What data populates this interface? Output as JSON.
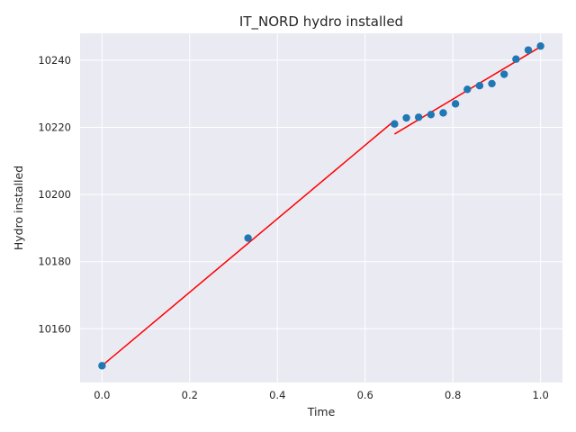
{
  "chart_data": {
    "type": "scatter",
    "title": "IT_NORD hydro installed",
    "xlabel": "Time",
    "ylabel": "Hydro installed",
    "xlim": [
      -0.05,
      1.05
    ],
    "ylim": [
      10144,
      10248
    ],
    "xticks": [
      0.0,
      0.2,
      0.4,
      0.6,
      0.8,
      1.0
    ],
    "xtick_labels": [
      "0.0",
      "0.2",
      "0.4",
      "0.6",
      "0.8",
      "1.0"
    ],
    "yticks": [
      10160,
      10180,
      10200,
      10220,
      10240
    ],
    "ytick_labels": [
      "10160",
      "10180",
      "10200",
      "10220",
      "10240"
    ],
    "grid": true,
    "background": "#eaeaf2",
    "point_color": "#1f77b4",
    "line_color": "#ff0000",
    "points": [
      {
        "x": 0.0,
        "y": 10149
      },
      {
        "x": 0.333,
        "y": 10187
      },
      {
        "x": 0.667,
        "y": 10221
      },
      {
        "x": 0.694,
        "y": 10222.8
      },
      {
        "x": 0.722,
        "y": 10223
      },
      {
        "x": 0.75,
        "y": 10223.8
      },
      {
        "x": 0.778,
        "y": 10224.3
      },
      {
        "x": 0.806,
        "y": 10227
      },
      {
        "x": 0.833,
        "y": 10231.3
      },
      {
        "x": 0.861,
        "y": 10232.4
      },
      {
        "x": 0.889,
        "y": 10233
      },
      {
        "x": 0.917,
        "y": 10235.8
      },
      {
        "x": 0.944,
        "y": 10240.3
      },
      {
        "x": 0.972,
        "y": 10243
      },
      {
        "x": 1.0,
        "y": 10244.2
      }
    ],
    "fit_lines": [
      {
        "x": [
          0.0,
          0.667
        ],
        "y": [
          10149,
          10222
        ]
      },
      {
        "x": [
          0.667,
          1.0
        ],
        "y": [
          10218,
          10244
        ]
      }
    ]
  }
}
